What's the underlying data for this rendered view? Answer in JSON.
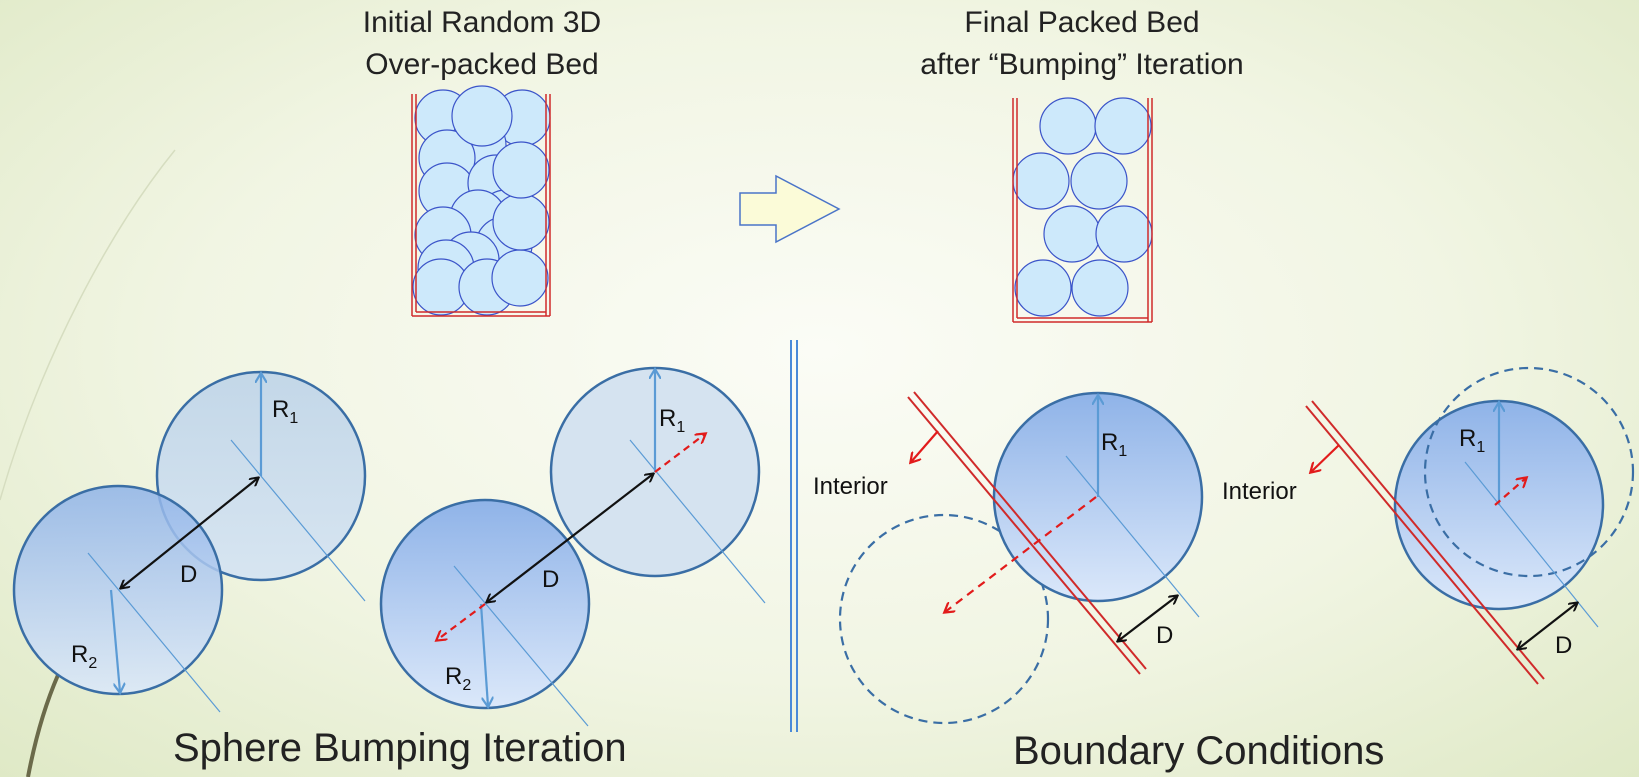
{
  "top": {
    "left_title_line1": "Initial Random 3D",
    "left_title_line2": "Over-packed Bed",
    "right_title_line1": "Final Packed Bed",
    "right_title_line2": "after “Bumping” Iteration"
  },
  "bottom": {
    "left_section_title": "Sphere Bumping Iteration",
    "right_section_title": "Boundary Conditions"
  },
  "labels": {
    "r": "R",
    "sub1": "1",
    "sub2": "2",
    "d": "D",
    "interior": "Interior"
  },
  "colors": {
    "container": "#d02a2a",
    "sphere_fill": "#cde9fb",
    "sphere_stroke": "#3b54c9",
    "arrow_red": "#e21b1b",
    "arrow_blue": "#5b9bd5",
    "circle_stroke": "#3a6ea5",
    "arrow_right_fill": "#fbfbd8"
  }
}
